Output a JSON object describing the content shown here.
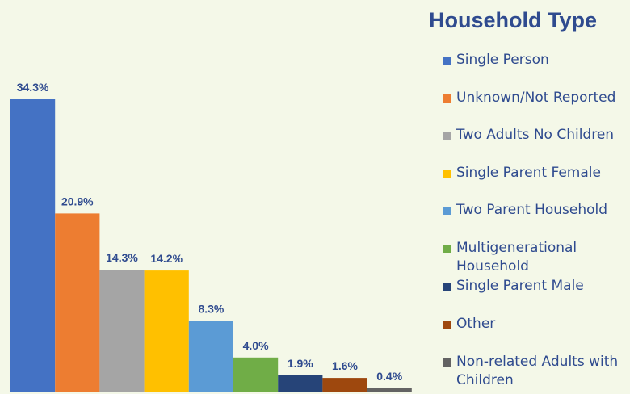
{
  "chart_data": {
    "type": "bar",
    "title": "Household Type",
    "categories": [
      "Single Person",
      "Unknown/Not Reported",
      "Two Adults No Children",
      "Single Parent Female",
      "Two Parent Household",
      "Multigenerational Household",
      "Single Parent Male",
      "Other",
      "Non-related Adults with Children"
    ],
    "values": [
      34.3,
      20.9,
      14.3,
      14.2,
      8.3,
      4.0,
      1.9,
      1.6,
      0.4
    ],
    "data_labels": [
      "34.3%",
      "20.9%",
      "14.3%",
      "14.2%",
      "8.3%",
      "4.0%",
      "1.9%",
      "1.6%",
      "0.4%"
    ],
    "colors": [
      "#4472c4",
      "#ed7d31",
      "#a5a5a5",
      "#ffc000",
      "#5b9bd5",
      "#70ad47",
      "#264478",
      "#9e480e",
      "#636363"
    ],
    "ylim": [
      0,
      42
    ],
    "grid": false,
    "legend_position": "right"
  }
}
